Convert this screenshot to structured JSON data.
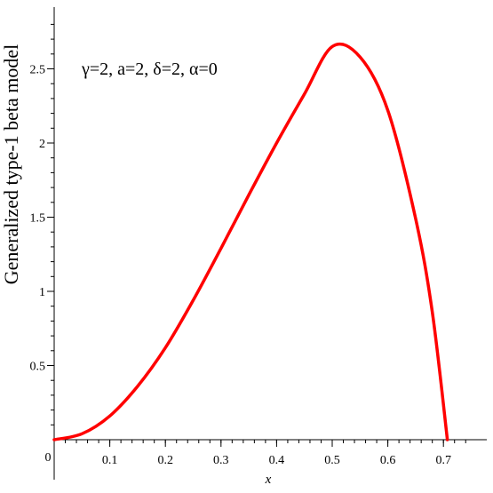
{
  "chart_data": {
    "type": "line",
    "title": "",
    "xlabel": "x",
    "ylabel": "Generalized type-1 beta model",
    "annotation": "γ=2, a=2, δ=2, α=0",
    "xlim": [
      0,
      0.75
    ],
    "ylim": [
      0,
      2.8
    ],
    "x_ticks": [
      0.1,
      0.2,
      0.3,
      0.4,
      0.5,
      0.6,
      0.7
    ],
    "x_tick_labels": [
      "0.1",
      "0.2",
      "0.3",
      "0.4",
      "0.5",
      "0.6",
      "0.7"
    ],
    "y_ticks": [
      0.5,
      1,
      1.5,
      2,
      2.5
    ],
    "y_tick_labels": [
      "0.5",
      "1",
      "1.5",
      "2",
      "2.5"
    ],
    "origin_label": "0",
    "grid": false,
    "series": [
      {
        "color": "#ff0000",
        "x": [
          0,
          0.05,
          0.1,
          0.15,
          0.2,
          0.25,
          0.3,
          0.35,
          0.4,
          0.45,
          0.5,
          0.55,
          0.6,
          0.65,
          0.68,
          0.7071
        ],
        "y": [
          0,
          0.04,
          0.16,
          0.36,
          0.62,
          0.94,
          1.29,
          1.65,
          2.0,
          2.33,
          2.65,
          2.58,
          2.22,
          1.49,
          0.86,
          0
        ]
      }
    ]
  }
}
